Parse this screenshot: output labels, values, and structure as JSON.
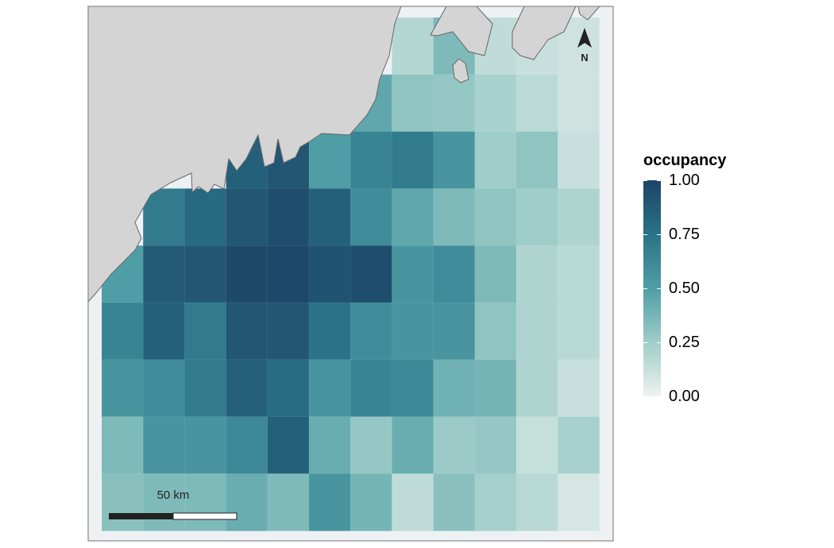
{
  "legend": {
    "title": "occupancy",
    "labels": [
      "1.00",
      "0.75",
      "0.50",
      "0.25",
      "0.00"
    ]
  },
  "scale_bar": {
    "label": "50 km"
  },
  "north_arrow": {
    "label": "N"
  },
  "colors": {
    "land": "#d4d4d4",
    "sea": "#edf1f4",
    "occupancy_high": "#1c4466",
    "occupancy_low": "#eef2f0"
  },
  "occupancy_grid": [
    [
      null,
      null,
      null,
      null,
      null,
      null,
      null,
      0.18,
      0.35,
      0.15,
      0.12,
      0.1
    ],
    [
      null,
      null,
      null,
      null,
      null,
      null,
      0.45,
      0.3,
      0.28,
      0.22,
      0.16,
      0.1
    ],
    [
      null,
      null,
      null,
      0.85,
      0.9,
      0.5,
      0.65,
      0.7,
      0.55,
      0.25,
      0.3,
      0.12
    ],
    [
      null,
      0.7,
      0.8,
      0.9,
      0.95,
      0.85,
      0.6,
      0.45,
      0.35,
      0.3,
      0.25,
      0.2
    ],
    [
      0.5,
      0.88,
      0.9,
      0.97,
      0.98,
      0.92,
      0.95,
      0.55,
      0.6,
      0.35,
      0.2,
      0.17
    ],
    [
      0.65,
      0.85,
      0.7,
      0.9,
      0.9,
      0.75,
      0.6,
      0.55,
      0.55,
      0.3,
      0.2,
      0.17
    ],
    [
      0.55,
      0.6,
      0.7,
      0.85,
      0.78,
      0.55,
      0.65,
      0.62,
      0.4,
      0.38,
      0.2,
      0.12
    ],
    [
      0.35,
      0.55,
      0.55,
      0.62,
      0.85,
      0.42,
      0.28,
      0.42,
      0.26,
      0.28,
      0.13,
      0.22
    ],
    [
      0.32,
      0.35,
      0.35,
      0.42,
      0.35,
      0.55,
      0.38,
      0.15,
      0.32,
      0.23,
      0.17,
      0.08
    ]
  ]
}
